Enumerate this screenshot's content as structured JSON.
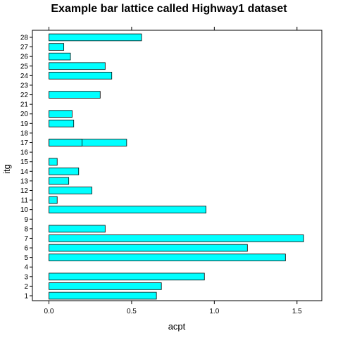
{
  "chart_data": {
    "type": "bar",
    "orientation": "horizontal",
    "title": "Example bar lattice called Highway1 dataset",
    "xlabel": "acpt",
    "ylabel": "itg",
    "categories": [
      "1",
      "2",
      "3",
      "4",
      "5",
      "6",
      "7",
      "8",
      "9",
      "10",
      "11",
      "12",
      "13",
      "14",
      "15",
      "16",
      "17",
      "18",
      "19",
      "20",
      "21",
      "22",
      "23",
      "24",
      "25",
      "26",
      "27",
      "28"
    ],
    "values": [
      0.65,
      0.68,
      0.94,
      0.0,
      1.43,
      1.2,
      1.54,
      0.34,
      0.0,
      0.95,
      0.05,
      0.26,
      0.12,
      0.18,
      0.05,
      0.0,
      0.47,
      0.0,
      0.15,
      0.14,
      0.0,
      0.31,
      0.0,
      0.38,
      0.34,
      0.13,
      0.09,
      0.56
    ],
    "overlay_values": {
      "17": 0.2
    },
    "xlim": [
      -0.1,
      1.65
    ],
    "xticks": [
      0.0,
      0.5,
      1.0,
      1.5
    ],
    "xtick_labels": [
      "0.0",
      "0.5",
      "1.0",
      "1.5"
    ],
    "bar_color": "#00ffff",
    "bar_border_color": "#000000",
    "grid": false
  }
}
